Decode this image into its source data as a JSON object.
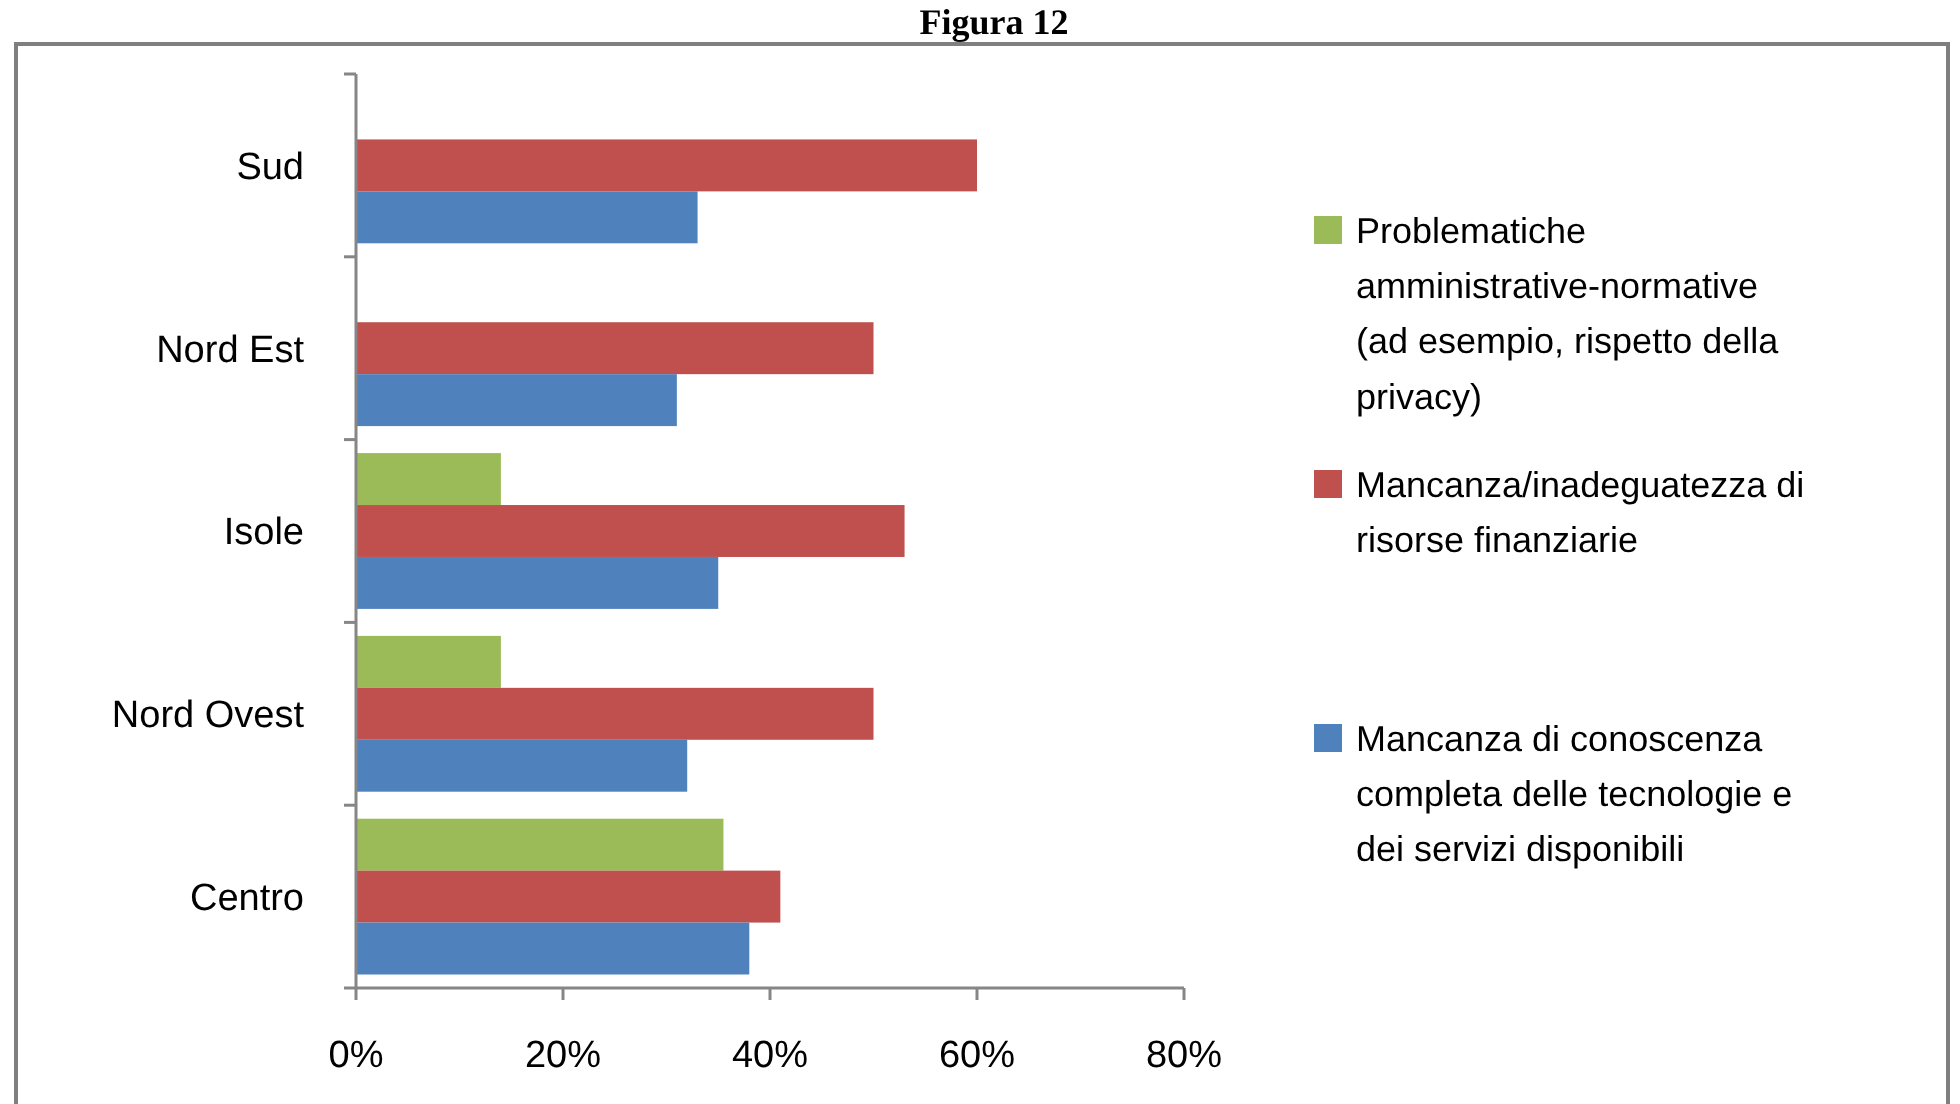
{
  "chart_data": {
    "type": "bar",
    "orientation": "horizontal",
    "title": "Figura 12",
    "categories": [
      "Sud",
      "Nord Est",
      "Isole",
      "Nord Ovest",
      "Centro"
    ],
    "series": [
      {
        "name": "Problematiche amministrative-normative (ad esempio, rispetto della privacy)",
        "color": "#9bbb59",
        "values": [
          null,
          null,
          14,
          14,
          35.5
        ]
      },
      {
        "name": "Mancanza/inadeguatezza di risorse finanziarie",
        "color": "#c0504d",
        "values": [
          60,
          50,
          53,
          50,
          41
        ]
      },
      {
        "name": "Mancanza di conoscenza completa delle tecnologie e dei servizi disponibili",
        "color": "#4f81bd",
        "values": [
          33,
          31,
          35,
          32,
          38
        ]
      }
    ],
    "xlim": [
      0,
      80
    ],
    "xticks": [
      {
        "value": 0,
        "label": "0%"
      },
      {
        "value": 20,
        "label": "20%"
      },
      {
        "value": 40,
        "label": "40%"
      },
      {
        "value": 60,
        "label": "60%"
      },
      {
        "value": 80,
        "label": "80%"
      }
    ],
    "legend": "right"
  }
}
